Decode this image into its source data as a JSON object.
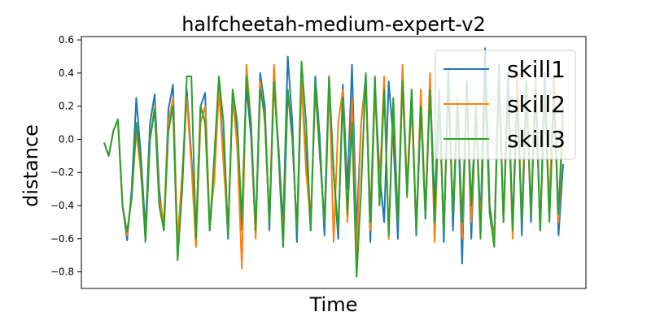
{
  "chart_data": {
    "type": "line",
    "title": "halfcheetah-medium-expert-v2",
    "xlabel": "Time",
    "ylabel": "distance",
    "xlim": [
      0,
      200
    ],
    "ylim": [
      -0.9,
      0.62
    ],
    "yticks": [
      -0.8,
      -0.6,
      -0.4,
      -0.2,
      0.0,
      0.2,
      0.4,
      0.6
    ],
    "ytick_labels": [
      "−0.8",
      "−0.6",
      "−0.4",
      "−0.2",
      "0.0",
      "0.2",
      "0.4",
      "0.6"
    ],
    "xticks_visible": false,
    "grid": false,
    "legend_position": "top-right",
    "series": [
      {
        "name": "skill1",
        "color": "#1f77b4",
        "x": [
          0,
          2,
          4,
          6,
          8,
          10,
          12,
          14,
          16,
          18,
          20,
          22,
          24,
          26,
          28,
          30,
          32,
          34,
          36,
          38,
          40,
          42,
          44,
          46,
          48,
          50,
          52,
          54,
          56,
          58,
          60,
          62,
          64,
          66,
          68,
          70,
          72,
          74,
          76,
          78,
          80,
          82,
          84,
          86,
          88,
          90,
          92,
          94,
          96,
          98,
          100,
          102,
          104,
          106,
          108,
          110,
          112,
          114,
          116,
          118,
          120,
          122,
          124,
          126,
          128,
          130,
          132,
          134,
          136,
          138,
          140,
          142,
          144,
          146,
          148,
          150,
          152,
          154,
          156,
          158,
          160,
          162,
          164,
          166,
          168,
          170,
          172,
          174,
          176,
          178,
          180,
          182,
          184,
          186,
          188,
          190,
          192,
          194,
          196,
          198,
          200
        ],
        "values": [
          -0.02,
          -0.1,
          0.05,
          0.12,
          -0.4,
          -0.61,
          -0.3,
          0.25,
          -0.1,
          -0.55,
          0.1,
          0.27,
          -0.3,
          -0.55,
          0.18,
          0.33,
          -0.68,
          -0.3,
          0.3,
          -0.1,
          -0.58,
          0.2,
          0.28,
          -0.55,
          -0.2,
          0.35,
          -0.1,
          -0.6,
          0.3,
          0.0,
          -0.55,
          0.32,
          0.02,
          -0.58,
          0.4,
          0.2,
          -0.55,
          0.38,
          -0.05,
          -0.52,
          0.5,
          0.1,
          -0.62,
          0.35,
          -0.1,
          -0.55,
          0.38,
          0.0,
          -0.58,
          0.32,
          -0.2,
          -0.6,
          0.33,
          -0.3,
          0.45,
          -0.55,
          0.1,
          0.38,
          -0.62,
          0.32,
          -0.2,
          -0.5,
          0.35,
          0.0,
          -0.6,
          0.4,
          -0.3,
          0.3,
          -0.58,
          0.2,
          -0.48,
          0.35,
          -0.4,
          0.3,
          -0.62,
          0.42,
          -0.55,
          0.25,
          -0.75,
          0.35,
          -0.6,
          0.2,
          -0.5,
          0.55,
          -0.4,
          -0.6,
          0.45,
          -0.5,
          0.4,
          -0.55,
          0.38,
          -0.58,
          0.3,
          -0.5,
          0.38,
          -0.55,
          0.4,
          -0.45,
          0.38,
          -0.58,
          -0.15
        ]
      },
      {
        "name": "skill2",
        "color": "#ff7f0e",
        "x": [
          0,
          2,
          4,
          6,
          8,
          10,
          12,
          14,
          16,
          18,
          20,
          22,
          24,
          26,
          28,
          30,
          32,
          34,
          36,
          38,
          40,
          42,
          44,
          46,
          48,
          50,
          52,
          54,
          56,
          58,
          60,
          62,
          64,
          66,
          68,
          70,
          72,
          74,
          76,
          78,
          80,
          82,
          84,
          86,
          88,
          90,
          92,
          94,
          96,
          98,
          100,
          102,
          104,
          106,
          108,
          110,
          112,
          114,
          116,
          118,
          120,
          122,
          124,
          126,
          128,
          130,
          132,
          134,
          136,
          138,
          140,
          142,
          144,
          146,
          148,
          150,
          152,
          154,
          156,
          158,
          160,
          162,
          164,
          166,
          168,
          170,
          172,
          174,
          176,
          178,
          180,
          182,
          184,
          186,
          188,
          190,
          192,
          194,
          196,
          198,
          200
        ],
        "values": [
          -0.02,
          -0.1,
          0.05,
          0.12,
          -0.4,
          -0.58,
          -0.35,
          0.05,
          -0.2,
          -0.6,
          0.0,
          0.2,
          -0.35,
          -0.5,
          0.1,
          0.25,
          -0.62,
          -0.2,
          0.25,
          -0.15,
          -0.65,
          0.1,
          0.2,
          -0.5,
          -0.25,
          0.3,
          -0.15,
          -0.55,
          0.25,
          -0.05,
          -0.78,
          0.45,
          0.1,
          -0.6,
          0.35,
          0.1,
          -0.5,
          0.45,
          -0.1,
          -0.6,
          0.28,
          0.0,
          -0.55,
          0.35,
          -0.2,
          -0.5,
          0.3,
          -0.1,
          -0.5,
          0.38,
          -0.62,
          0.1,
          0.3,
          -0.5,
          0.25,
          -0.72,
          0.1,
          0.35,
          -0.55,
          0.3,
          -0.3,
          0.38,
          -0.6,
          0.2,
          -0.5,
          0.45,
          -0.3,
          0.2,
          -0.55,
          0.3,
          -0.45,
          0.4,
          -0.62,
          0.2,
          -0.55,
          0.3,
          -0.45,
          0.25,
          -0.6,
          0.3,
          -0.5,
          0.2,
          -0.55,
          0.35,
          -0.45,
          -0.6,
          0.38,
          -0.5,
          0.3,
          -0.6,
          0.4,
          -0.5,
          0.25,
          -0.45,
          0.35,
          -0.55,
          0.3,
          -0.4,
          0.35,
          -0.5,
          0.1
        ]
      },
      {
        "name": "skill3",
        "color": "#2ca02c",
        "x": [
          0,
          2,
          4,
          6,
          8,
          10,
          12,
          14,
          16,
          18,
          20,
          22,
          24,
          26,
          28,
          30,
          32,
          34,
          36,
          38,
          40,
          42,
          44,
          46,
          48,
          50,
          52,
          54,
          56,
          58,
          60,
          62,
          64,
          66,
          68,
          70,
          72,
          74,
          76,
          78,
          80,
          82,
          84,
          86,
          88,
          90,
          92,
          94,
          96,
          98,
          100,
          102,
          104,
          106,
          108,
          110,
          112,
          114,
          116,
          118,
          120,
          122,
          124,
          126,
          128,
          130,
          132,
          134,
          136,
          138,
          140,
          142,
          144,
          146,
          148,
          150,
          152,
          154,
          156,
          158,
          160,
          162,
          164,
          166,
          168,
          170,
          172,
          174,
          176,
          178,
          180,
          182,
          184,
          186,
          188,
          190,
          192,
          194,
          196,
          198,
          200
        ],
        "values": [
          -0.02,
          -0.1,
          0.05,
          0.12,
          -0.4,
          -0.56,
          -0.35,
          0.1,
          -0.15,
          -0.62,
          0.0,
          0.18,
          -0.4,
          -0.55,
          0.05,
          0.2,
          -0.73,
          -0.3,
          0.38,
          0.38,
          -0.6,
          0.2,
          0.1,
          -0.55,
          -0.1,
          0.38,
          0.1,
          -0.58,
          0.3,
          0.1,
          -0.5,
          0.38,
          0.1,
          -0.55,
          0.3,
          0.15,
          -0.5,
          0.35,
          -0.1,
          -0.65,
          0.3,
          0.0,
          -0.55,
          0.47,
          0.1,
          -0.55,
          0.35,
          -0.1,
          -0.5,
          0.38,
          -0.2,
          -0.55,
          0.25,
          -0.45,
          0.1,
          -0.83,
          -0.3,
          0.4,
          -0.5,
          0.38,
          -0.4,
          0.3,
          -0.58,
          0.25,
          -0.5,
          0.35,
          -0.35,
          0.3,
          -0.55,
          0.2,
          -0.45,
          0.3,
          -0.5,
          0.25,
          -0.55,
          0.35,
          -0.45,
          0.2,
          -0.5,
          0.3,
          -0.4,
          0.2,
          -0.6,
          0.35,
          -0.45,
          -0.65,
          0.4,
          -0.5,
          0.3,
          -0.55,
          0.25,
          -0.5,
          0.35,
          -0.45,
          0.3,
          -0.55,
          0.3,
          -0.5,
          0.25,
          -0.45,
          0.2
        ]
      }
    ]
  }
}
